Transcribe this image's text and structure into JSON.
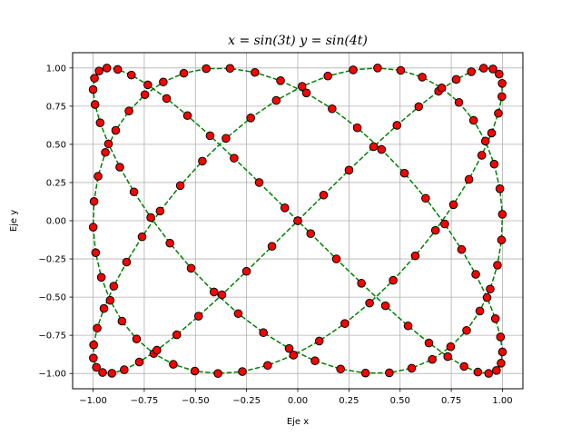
{
  "chart_data": {
    "type": "line",
    "title": "x = sin(3t)   y = sin(4t)",
    "xlabel": "Eje x",
    "ylabel": "Eje y",
    "xlim": [
      -1.1,
      1.1
    ],
    "ylim": [
      -1.1,
      1.1
    ],
    "xticks": [
      -1.0,
      -0.75,
      -0.5,
      -0.25,
      0.0,
      0.25,
      0.5,
      0.75,
      1.0
    ],
    "xtick_labels": [
      "−1.00",
      "−0.75",
      "−0.50",
      "−0.25",
      "0.00",
      "0.25",
      "0.50",
      "0.75",
      "1.00"
    ],
    "yticks": [
      -1.0,
      -0.75,
      -0.5,
      -0.25,
      0.0,
      0.25,
      0.5,
      0.75,
      1.0
    ],
    "ytick_labels": [
      "−1.00",
      "−0.75",
      "−0.50",
      "−0.25",
      "0.00",
      "0.25",
      "0.50",
      "0.75",
      "1.00"
    ],
    "grid": true,
    "series": [
      {
        "x_function": "sin(3t)",
        "y_function": "sin(4t)",
        "t_range": [
          0,
          6.283185307
        ],
        "num_points": 150,
        "line_style": "dashed",
        "line_color": "#008000",
        "marker": "circle",
        "marker_face": "#ff0000",
        "marker_edge": "#000000"
      }
    ]
  }
}
